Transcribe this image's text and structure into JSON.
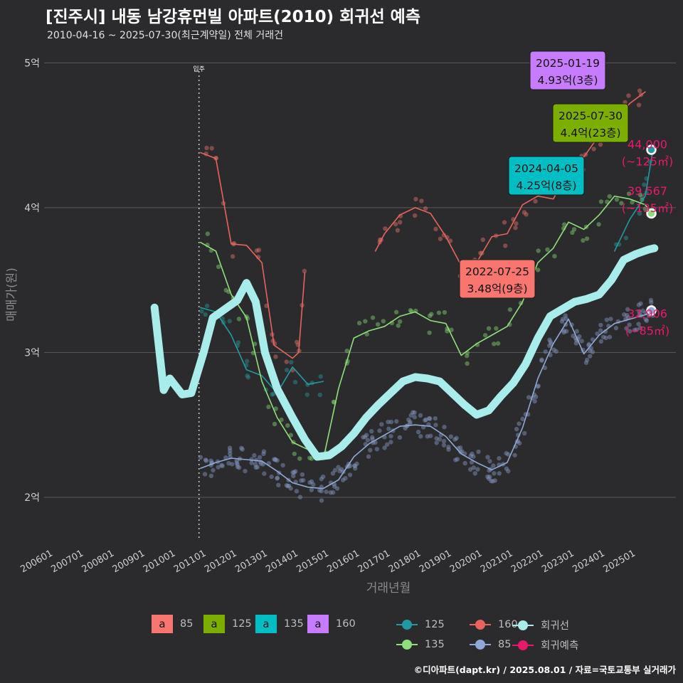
{
  "title": "[진주시] 내동 남강휴먼빌 아파트(2010) 회귀선 예측",
  "subtitle": "2010-04-16 ~ 2025-07-30(최근계약일) 전체 거래건",
  "footer": "©디아파트(dapt.kr) / 2025.08.01 / 자료=국토교통부 실거래가",
  "colors": {
    "background": "#2b2b2d",
    "s85": "#f8766d",
    "s125": "#7cae00",
    "s135": "#00bfc4",
    "s160": "#c77cff",
    "trend85": "#8fa8d8",
    "trend125": "#1f9aa3",
    "trend135": "#8fe07a",
    "trend160": "#e8635c",
    "regression": "#a8ecec",
    "forecast": "#e8196b"
  },
  "chart_data": {
    "type": "line",
    "title": "[진주시] 내동 남강휴먼빌 아파트(2010) 회귀선 예측",
    "xlabel": "거래년월",
    "ylabel": "매매가(원)",
    "ylim": [
      1.7,
      5.1
    ],
    "xlim": [
      2005.7,
      2026.3
    ],
    "x_ticks": [
      2006,
      2007,
      2008,
      2009,
      2010,
      2011,
      2012,
      2013,
      2014,
      2015,
      2016,
      2017,
      2018,
      2019,
      2020,
      2021,
      2022,
      2023,
      2024,
      2025
    ],
    "x_tick_labels": [
      "200601",
      "200701",
      "200801",
      "200901",
      "201001",
      "201101",
      "201201",
      "201301",
      "201401",
      "201501",
      "201601",
      "201701",
      "201801",
      "201901",
      "202001",
      "202101",
      "202201",
      "202301",
      "202401",
      "202501"
    ],
    "y_ticks": [
      2,
      3,
      4,
      5
    ],
    "y_tick_labels": [
      "2억",
      "3억",
      "4억",
      "5억"
    ],
    "grid": true,
    "move_in_marker": {
      "x": 2010.75,
      "label": "입주"
    },
    "series": [
      {
        "name": "85",
        "values": [
          [
            2010.8,
            2.2
          ],
          [
            2011.3,
            2.24
          ],
          [
            2011.8,
            2.27
          ],
          [
            2012.3,
            2.26
          ],
          [
            2012.8,
            2.25
          ],
          [
            2013.3,
            2.18
          ],
          [
            2013.8,
            2.1
          ],
          [
            2014.3,
            2.07
          ],
          [
            2014.8,
            2.06
          ],
          [
            2015.3,
            2.12
          ],
          [
            2015.8,
            2.28
          ],
          [
            2016.3,
            2.37
          ],
          [
            2016.8,
            2.43
          ],
          [
            2017.3,
            2.49
          ],
          [
            2017.8,
            2.5
          ],
          [
            2018.3,
            2.49
          ],
          [
            2018.8,
            2.42
          ],
          [
            2019.3,
            2.3
          ],
          [
            2019.8,
            2.24
          ],
          [
            2020.3,
            2.19
          ],
          [
            2020.8,
            2.24
          ],
          [
            2021.3,
            2.48
          ],
          [
            2021.8,
            2.82
          ],
          [
            2022.3,
            3.06
          ],
          [
            2022.8,
            3.23
          ],
          [
            2023.3,
            2.99
          ],
          [
            2023.8,
            3.12
          ],
          [
            2024.3,
            3.2
          ],
          [
            2024.8,
            3.23
          ],
          [
            2025.3,
            3.26
          ],
          [
            2025.55,
            3.29
          ]
        ]
      },
      {
        "name": "125",
        "values": [
          [
            2010.8,
            3.31
          ],
          [
            2011.3,
            3.28
          ],
          [
            2011.8,
            3.12
          ],
          [
            2012.3,
            2.88
          ],
          [
            2012.8,
            2.84
          ],
          [
            2013.3,
            2.72
          ],
          [
            2013.8,
            2.9
          ],
          [
            2014.3,
            2.78
          ],
          [
            2014.8,
            2.8
          ],
          [
            2024.3,
            3.7
          ],
          [
            2024.8,
            3.92
          ],
          [
            2025.3,
            4.08
          ],
          [
            2025.55,
            4.4
          ]
        ]
      },
      {
        "name": "135",
        "values": [
          [
            2010.8,
            3.76
          ],
          [
            2011.3,
            3.7
          ],
          [
            2011.8,
            3.4
          ],
          [
            2012.3,
            3.24
          ],
          [
            2012.8,
            2.8
          ],
          [
            2013.3,
            2.55
          ],
          [
            2013.8,
            2.38
          ],
          [
            2014.3,
            2.33
          ],
          [
            2014.8,
            2.26
          ],
          [
            2015.3,
            2.75
          ],
          [
            2015.8,
            3.1
          ],
          [
            2016.3,
            3.15
          ],
          [
            2016.8,
            3.18
          ],
          [
            2017.3,
            3.25
          ],
          [
            2017.8,
            3.28
          ],
          [
            2018.3,
            3.22
          ],
          [
            2018.8,
            3.2
          ],
          [
            2019.3,
            2.98
          ],
          [
            2019.8,
            3.06
          ],
          [
            2020.3,
            3.12
          ],
          [
            2020.8,
            3.18
          ],
          [
            2021.3,
            3.35
          ],
          [
            2021.8,
            3.62
          ],
          [
            2022.3,
            3.72
          ],
          [
            2022.8,
            3.9
          ],
          [
            2023.3,
            3.85
          ],
          [
            2023.8,
            3.95
          ],
          [
            2024.3,
            4.08
          ],
          [
            2024.8,
            4.06
          ],
          [
            2025.3,
            4.02
          ],
          [
            2025.55,
            3.95
          ]
        ]
      },
      {
        "name": "160",
        "values": [
          [
            2010.8,
            4.38
          ],
          [
            2011.3,
            4.34
          ],
          [
            2011.8,
            3.75
          ],
          [
            2012.3,
            3.74
          ],
          [
            2012.8,
            3.62
          ],
          [
            2013.2,
            3.05
          ],
          [
            2013.8,
            2.96
          ],
          [
            2014.0,
            3.0
          ],
          [
            2014.2,
            3.55
          ],
          [
            2016.5,
            3.7
          ],
          [
            2016.8,
            3.82
          ],
          [
            2017.3,
            3.95
          ],
          [
            2017.8,
            4.0
          ],
          [
            2018.3,
            3.96
          ],
          [
            2018.8,
            3.8
          ],
          [
            2019.3,
            3.6
          ],
          [
            2019.8,
            3.62
          ],
          [
            2020.3,
            3.8
          ],
          [
            2020.8,
            3.82
          ],
          [
            2021.3,
            4.02
          ],
          [
            2021.8,
            4.08
          ],
          [
            2022.3,
            4.06
          ],
          [
            2022.8,
            4.25
          ],
          [
            2023.3,
            4.35
          ],
          [
            2023.8,
            4.5
          ],
          [
            2024.3,
            4.6
          ],
          [
            2024.8,
            4.72
          ],
          [
            2025.3,
            4.8
          ]
        ]
      },
      {
        "name": "회귀선",
        "values": [
          [
            2009.3,
            3.31
          ],
          [
            2009.6,
            2.74
          ],
          [
            2009.8,
            2.82
          ],
          [
            2010.2,
            2.71
          ],
          [
            2010.5,
            2.72
          ],
          [
            2010.9,
            3.0
          ],
          [
            2011.2,
            3.24
          ],
          [
            2011.6,
            3.3
          ],
          [
            2012.0,
            3.36
          ],
          [
            2012.3,
            3.48
          ],
          [
            2012.6,
            3.35
          ],
          [
            2012.9,
            3.0
          ],
          [
            2013.3,
            2.75
          ],
          [
            2013.8,
            2.55
          ],
          [
            2014.2,
            2.4
          ],
          [
            2014.6,
            2.28
          ],
          [
            2015.0,
            2.29
          ],
          [
            2015.4,
            2.35
          ],
          [
            2015.8,
            2.44
          ],
          [
            2016.2,
            2.55
          ],
          [
            2016.6,
            2.64
          ],
          [
            2017.0,
            2.72
          ],
          [
            2017.4,
            2.8
          ],
          [
            2017.8,
            2.83
          ],
          [
            2018.2,
            2.82
          ],
          [
            2018.6,
            2.8
          ],
          [
            2019.0,
            2.72
          ],
          [
            2019.4,
            2.64
          ],
          [
            2019.8,
            2.57
          ],
          [
            2020.2,
            2.6
          ],
          [
            2020.6,
            2.7
          ],
          [
            2021.0,
            2.79
          ],
          [
            2021.4,
            2.92
          ],
          [
            2021.8,
            3.1
          ],
          [
            2022.2,
            3.25
          ],
          [
            2022.6,
            3.3
          ],
          [
            2023.0,
            3.35
          ],
          [
            2023.4,
            3.37
          ],
          [
            2023.8,
            3.4
          ],
          [
            2024.2,
            3.5
          ],
          [
            2024.6,
            3.64
          ],
          [
            2025.0,
            3.68
          ],
          [
            2025.4,
            3.71
          ],
          [
            2025.6,
            3.72
          ]
        ]
      }
    ],
    "forecast_points": [
      {
        "x": 2025.5,
        "y": 4.4,
        "label": "44,000",
        "sub": "(~125㎡)"
      },
      {
        "x": 2025.5,
        "y": 3.96,
        "label": "39,567",
        "sub": "(~135㎡)"
      },
      {
        "x": 2025.5,
        "y": 3.29,
        "label": "32,906",
        "sub": "(~85㎡)"
      }
    ],
    "callouts": [
      {
        "date": "2025-01-19",
        "price": "4.93억(3층)",
        "x": 2025.05,
        "y": 4.93,
        "color": "#c77cff"
      },
      {
        "date": "2025-07-30",
        "price": "4.4억(23층)",
        "x": 2025.58,
        "y": 4.4,
        "color": "#7cae00"
      },
      {
        "date": "2024-04-05",
        "price": "4.25억(8층)",
        "x": 2024.27,
        "y": 4.25,
        "color": "#00bfc4"
      },
      {
        "date": "2022-07-25",
        "price": "3.48억(9층)",
        "x": 2022.56,
        "y": 3.48,
        "color": "#f8766d"
      }
    ],
    "legend": {
      "placement": "bottom",
      "size_title": "",
      "sizes": [
        {
          "label": "85",
          "color": "#f8766d"
        },
        {
          "label": "125",
          "color": "#7cae00"
        },
        {
          "label": "135",
          "color": "#00bfc4"
        },
        {
          "label": "160",
          "color": "#c77cff"
        }
      ],
      "swatch_glyph": "a",
      "lines": [
        {
          "label": "125",
          "color": "#1f9aa3"
        },
        {
          "label": "160",
          "color": "#e8635c"
        },
        {
          "label": "회귀선",
          "color": "#a8ecec"
        },
        {
          "label": "135",
          "color": "#8fe07a"
        },
        {
          "label": "85",
          "color": "#8fa8d8"
        },
        {
          "label": "회귀예측",
          "color": "#e8196b"
        }
      ]
    }
  }
}
